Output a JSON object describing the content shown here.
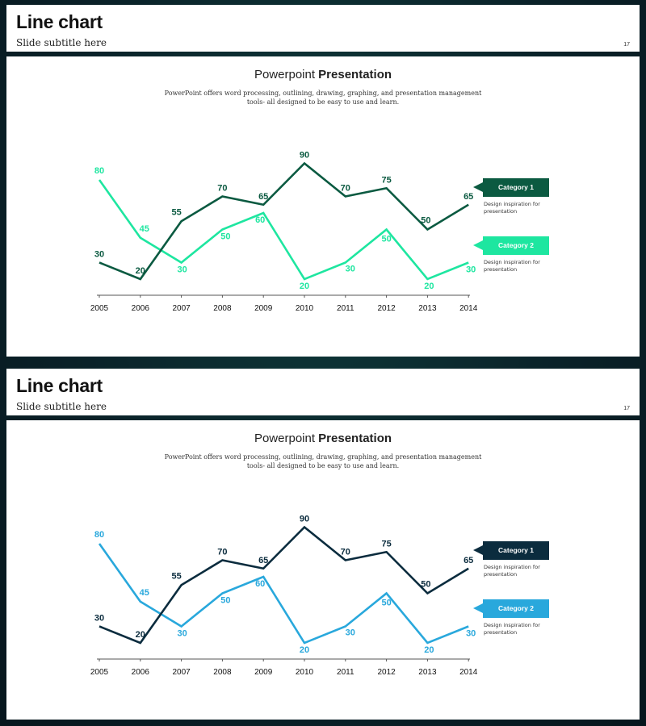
{
  "slides": [
    {
      "title": "Line chart",
      "subtitle": "Slide subtitle here",
      "page_number": "17",
      "heading_light": "Powerpoint",
      "heading_bold": "Presentation",
      "description": "PowerPoint offers word processing, outlining, drawing, graphing, and presentation management tools- all designed to be easy to use and learn.",
      "colors": {
        "series1": "#0b5a41",
        "series2": "#1ee6a0"
      },
      "legend": [
        {
          "label": "Category 1",
          "desc": "Design inspiration for presentation"
        },
        {
          "label": "Category 2",
          "desc": "Design inspiration for presentation"
        }
      ]
    },
    {
      "title": "Line chart",
      "subtitle": "Slide subtitle here",
      "page_number": "17",
      "heading_light": "Powerpoint",
      "heading_bold": "Presentation",
      "description": "PowerPoint offers word processing, outlining, drawing, graphing, and presentation management tools- all designed to be easy to use and learn.",
      "colors": {
        "series1": "#0b2c3e",
        "series2": "#29a8dc"
      },
      "legend": [
        {
          "label": "Category 1",
          "desc": "Design inspiration for presentation"
        },
        {
          "label": "Category 2",
          "desc": "Design inspiration for presentation"
        }
      ]
    }
  ],
  "chart_data": [
    {
      "type": "line",
      "title": "Powerpoint Presentation",
      "categories": [
        "2005",
        "2006",
        "2007",
        "2008",
        "2009",
        "2010",
        "2011",
        "2012",
        "2013",
        "2014"
      ],
      "series": [
        {
          "name": "Category 1",
          "values": [
            30,
            20,
            55,
            70,
            65,
            90,
            70,
            75,
            50,
            65
          ]
        },
        {
          "name": "Category 2",
          "values": [
            80,
            45,
            30,
            50,
            60,
            20,
            30,
            50,
            20,
            30
          ]
        }
      ],
      "xlabel": "",
      "ylabel": "",
      "ylim": [
        0,
        100
      ]
    },
    {
      "type": "line",
      "title": "Powerpoint Presentation",
      "categories": [
        "2005",
        "2006",
        "2007",
        "2008",
        "2009",
        "2010",
        "2011",
        "2012",
        "2013",
        "2014"
      ],
      "series": [
        {
          "name": "Category 1",
          "values": [
            30,
            20,
            55,
            70,
            65,
            90,
            70,
            75,
            50,
            65
          ]
        },
        {
          "name": "Category 2",
          "values": [
            80,
            45,
            30,
            50,
            60,
            20,
            30,
            50,
            20,
            30
          ]
        }
      ],
      "xlabel": "",
      "ylabel": "",
      "ylim": [
        0,
        100
      ]
    }
  ]
}
